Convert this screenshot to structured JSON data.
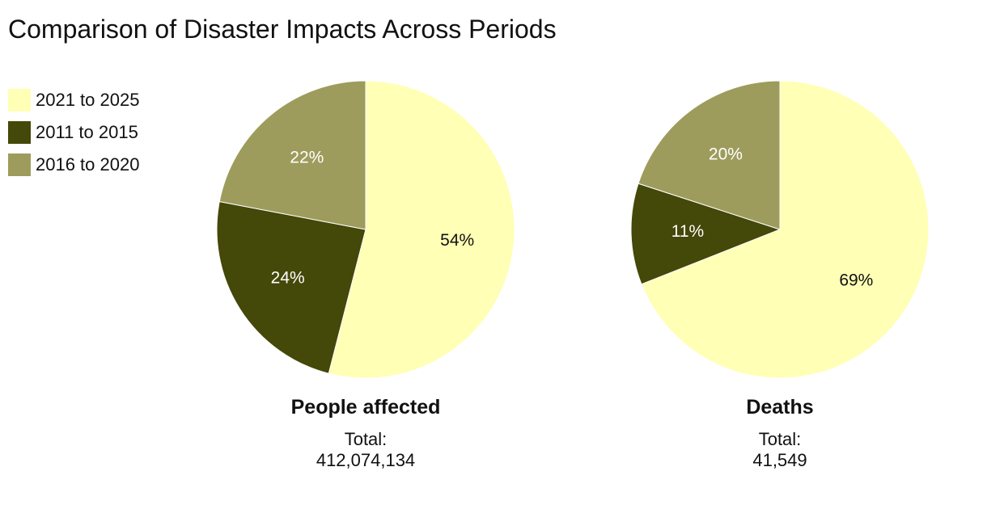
{
  "title": "Comparison of Disaster Impacts Across Periods",
  "legend": [
    {
      "label": "2021 to 2025",
      "color": "#ffffb5"
    },
    {
      "label": "2011 to 2015",
      "color": "#444808"
    },
    {
      "label": "2016 to 2020",
      "color": "#9e9c5c"
    }
  ],
  "chart_data": [
    {
      "type": "pie",
      "title": "People affected",
      "total_label": "Total:",
      "total_value": "412,074,134",
      "slices": [
        {
          "label": "2021 to 2025",
          "value": 54,
          "text": "54%",
          "color": "#ffffb5",
          "text_color": "#111111"
        },
        {
          "label": "2011 to 2015",
          "value": 24,
          "text": "24%",
          "color": "#444808",
          "text_color": "#ffffff"
        },
        {
          "label": "2016 to 2020",
          "value": 22,
          "text": "22%",
          "color": "#9e9c5c",
          "text_color": "#ffffff"
        }
      ]
    },
    {
      "type": "pie",
      "title": "Deaths",
      "total_label": "Total:",
      "total_value": "41,549",
      "slices": [
        {
          "label": "2021 to 2025",
          "value": 69,
          "text": "69%",
          "color": "#ffffb5",
          "text_color": "#111111"
        },
        {
          "label": "2011 to 2015",
          "value": 11,
          "text": "11%",
          "color": "#444808",
          "text_color": "#ffffff"
        },
        {
          "label": "2016 to 2020",
          "value": 20,
          "text": "20%",
          "color": "#9e9c5c",
          "text_color": "#ffffff"
        }
      ]
    }
  ]
}
